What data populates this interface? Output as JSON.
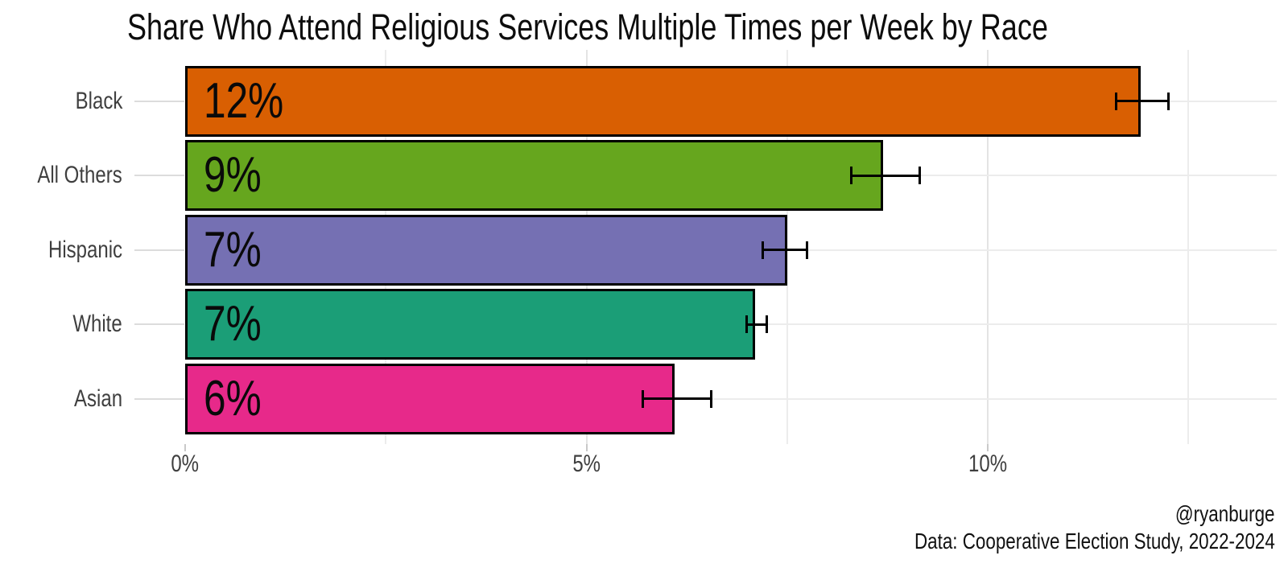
{
  "title": "Share Who Attend Religious Services Multiple Times per Week by Race",
  "caption": {
    "handle": "@ryanburge",
    "source": "Data: Cooperative Election Study, 2022-2024"
  },
  "chart_data": {
    "type": "bar",
    "orientation": "horizontal",
    "title": "Share Who Attend Religious Services Multiple Times per Week by Race",
    "xlabel": "",
    "ylabel": "",
    "categories": [
      "Black",
      "All Others",
      "Hispanic",
      "White",
      "Asian"
    ],
    "values": [
      11.9,
      8.7,
      7.5,
      7.1,
      6.1
    ],
    "bar_labels": [
      "12%",
      "9%",
      "7%",
      "7%",
      "6%"
    ],
    "bar_colors": [
      "#D95F02",
      "#66A61E",
      "#7570B3",
      "#1B9E77",
      "#E7298A"
    ],
    "error_low": [
      11.6,
      8.3,
      7.2,
      7.0,
      5.7
    ],
    "error_high": [
      12.25,
      9.15,
      7.75,
      7.25,
      6.55
    ],
    "x_ticks": [
      {
        "value": 0,
        "label": "0%"
      },
      {
        "value": 5,
        "label": "5%"
      },
      {
        "value": 10,
        "label": "10%"
      }
    ],
    "x_minor_gridlines": [
      2.5,
      7.5,
      12.5
    ],
    "xlim": [
      0,
      13.6
    ],
    "grid": true,
    "legend": false,
    "colors": {
      "bar_border": "#000000",
      "error_bar": "#000000",
      "major_grid": "#e4e4e4",
      "minor_grid": "#ececec",
      "axis_tick": "#c9c9c9",
      "axis_text": "#3f3f3f"
    }
  }
}
